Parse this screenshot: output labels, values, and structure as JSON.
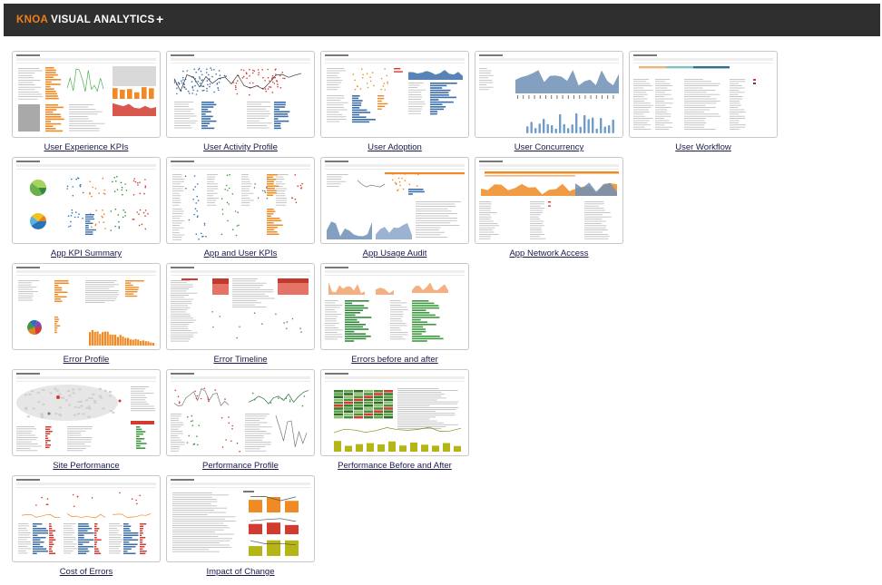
{
  "header": {
    "brand_accent": "KNOA",
    "brand_rest": " VISUAL ANALYTICS",
    "add_label": "+"
  },
  "colors": {
    "header_bg": "#2f2f2f",
    "accent": "#f07e1a",
    "link": "#1a1a4a"
  },
  "dashboards": [
    {
      "label": "User Experience KPIs",
      "style": "ux"
    },
    {
      "label": "User Activity Profile",
      "style": "activity"
    },
    {
      "label": "User Adoption",
      "style": "adoption"
    },
    {
      "label": "User Concurrency",
      "style": "concurrency"
    },
    {
      "label": "User Workflow",
      "style": "workflow"
    },
    {
      "label": "App KPI Summary",
      "style": "kpisummary"
    },
    {
      "label": "App and User KPIs",
      "style": "appuser"
    },
    {
      "label": "App Usage Audit",
      "style": "usage"
    },
    {
      "label": "App Network Access",
      "style": "network"
    },
    {
      "label": "Error Profile",
      "style": "errorprofile"
    },
    {
      "label": "Error Timeline",
      "style": "errortimeline"
    },
    {
      "label": "Errors before and after",
      "style": "errorsba"
    },
    {
      "label": "Site Performance",
      "style": "site"
    },
    {
      "label": "Performance Profile",
      "style": "perfprofile"
    },
    {
      "label": "Performance Before and After",
      "style": "perfba"
    },
    {
      "label": "Cost of Errors",
      "style": "cost"
    },
    {
      "label": "Impact of Change",
      "style": "impact"
    }
  ]
}
